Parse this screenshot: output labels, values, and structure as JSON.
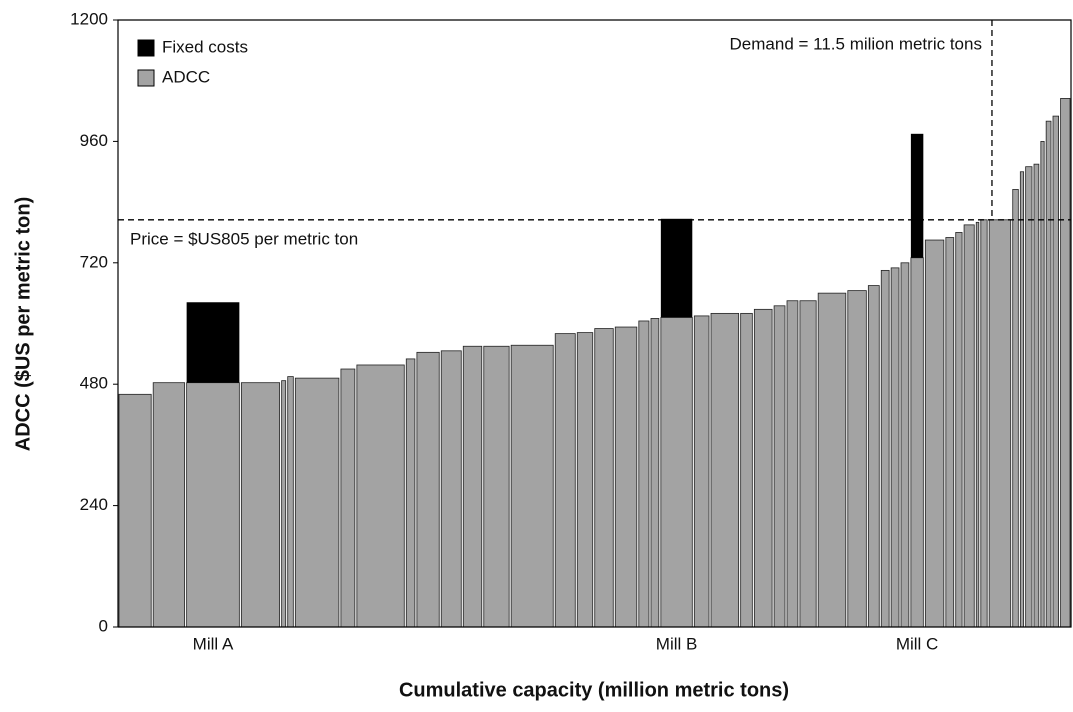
{
  "chart_data": {
    "type": "bar",
    "xlabel": "Cumulative capacity (million metric tons)",
    "ylabel": "ADCC ($US per metric ton)",
    "ylim": [
      0,
      1200
    ],
    "yticks": [
      0,
      240,
      480,
      720,
      960,
      1200
    ],
    "xlim": [
      0,
      12.54
    ],
    "bins": [
      0,
      0.45,
      0.89,
      1.61,
      2.14,
      2.22,
      2.32,
      2.92,
      3.13,
      3.78,
      3.92,
      4.24,
      4.53,
      4.8,
      5.16,
      5.74,
      6.03,
      6.26,
      6.53,
      6.84,
      7.0,
      7.13,
      7.57,
      7.79,
      8.18,
      8.36,
      8.62,
      8.79,
      8.96,
      9.2,
      9.59,
      9.86,
      10.03,
      10.16,
      10.29,
      10.42,
      10.61,
      10.88,
      11.01,
      11.12,
      11.28,
      11.34,
      11.45,
      11.76,
      11.86,
      11.93,
      12.04,
      12.13,
      12.2,
      12.29,
      12.39,
      12.54
    ],
    "categories": [
      null,
      null,
      "Mill A",
      null,
      null,
      null,
      null,
      null,
      null,
      null,
      null,
      null,
      null,
      null,
      null,
      null,
      null,
      null,
      null,
      null,
      null,
      "Mill B",
      null,
      null,
      null,
      null,
      null,
      null,
      null,
      null,
      null,
      null,
      null,
      null,
      null,
      "Mill C",
      null,
      null,
      null,
      null,
      null,
      null,
      null,
      null,
      null,
      null,
      null,
      null,
      null,
      null,
      null
    ],
    "series": [
      {
        "name": "ADCC",
        "color": "#a3a3a3",
        "values": [
          460,
          483,
          483,
          483,
          487,
          495,
          492,
          510,
          518,
          530,
          543,
          546,
          555,
          555,
          557,
          580,
          582,
          590,
          593,
          605,
          610,
          612,
          615,
          620,
          620,
          628,
          635,
          645,
          645,
          660,
          665,
          675,
          705,
          710,
          720,
          730,
          765,
          770,
          780,
          795,
          800,
          805,
          805,
          865,
          900,
          910,
          915,
          960,
          1000,
          1010,
          1045
        ]
      },
      {
        "name": "Fixed costs",
        "color": "#000000",
        "values": [
          null,
          null,
          159,
          null,
          null,
          null,
          null,
          null,
          null,
          null,
          null,
          null,
          null,
          null,
          null,
          null,
          null,
          null,
          null,
          null,
          null,
          195,
          null,
          null,
          null,
          null,
          null,
          null,
          null,
          null,
          null,
          null,
          null,
          null,
          null,
          245,
          null,
          null,
          null,
          null,
          null,
          null,
          null,
          null,
          null,
          null,
          null,
          null,
          null,
          null,
          null
        ]
      }
    ],
    "price_line": {
      "value": 805,
      "label": "Price = $US805 per metric ton"
    },
    "demand_line": {
      "value": 11.5,
      "label": "Demand = 11.5 milion metric tons"
    }
  }
}
